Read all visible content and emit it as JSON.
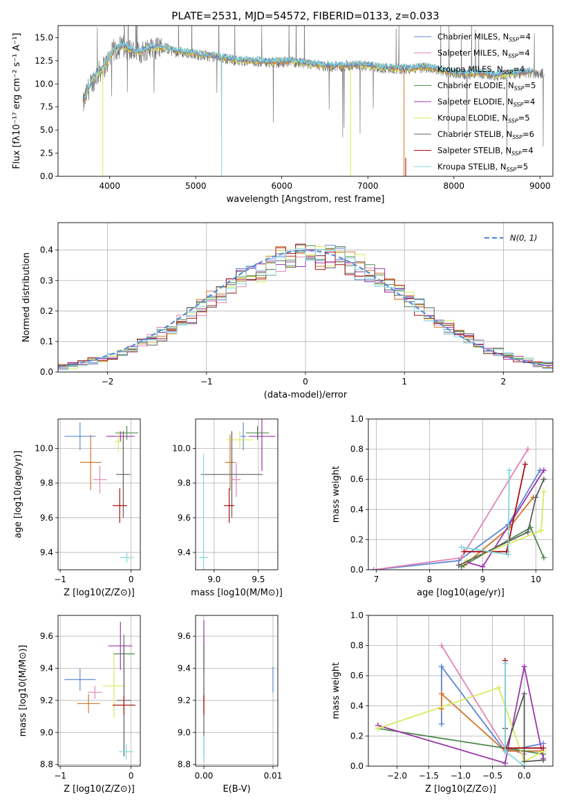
{
  "colors": {
    "chabrier_miles": "#5b87d6",
    "salpeter_miles": "#e183b6",
    "kroupa_miles": "#d2752a",
    "chabrier_elodie": "#4d8a4d",
    "salpeter_elodie": "#9b34a8",
    "kroupa_elodie": "#d8ea5c",
    "chabrier_stelib": "#5b5b5b",
    "salpeter_stelib": "#a80e0e",
    "kroupa_stelib": "#7fd8dd",
    "normal": "#5b8ad6"
  },
  "chart_data": [
    {
      "id": "spectrum",
      "type": "line",
      "title": "PLATE=2531, MJD=54572, FIBERID=0133, z=0.033",
      "xlabel": "wavelength [Angstrom, rest frame]",
      "ylabel": "Flux [fλ10⁻¹⁷ erg cm⁻² s⁻¹ A⁻¹]",
      "xlim": [
        3400,
        9150
      ],
      "ylim": [
        0,
        16.3
      ],
      "xticks": [
        4000,
        5000,
        6000,
        7000,
        8000,
        9000
      ],
      "yticks": [
        0.0,
        2.5,
        5.0,
        7.5,
        10.0,
        12.5,
        15.0
      ],
      "legend_position": "top-right",
      "legend": [
        {
          "label": "Chabrier MILES, N",
          "sub": "SSP",
          "tail": "=4",
          "color_key": "chabrier_miles"
        },
        {
          "label": "Salpeter MILES, N",
          "sub": "SSP",
          "tail": "=4",
          "color_key": "salpeter_miles"
        },
        {
          "label": "Kroupa MILES, N",
          "sub": "SSP",
          "tail": "=4",
          "color_key": "kroupa_miles"
        },
        {
          "label": "Chabrier ELODIE, N",
          "sub": "SSP",
          "tail": "=5",
          "color_key": "chabrier_elodie"
        },
        {
          "label": "Salpeter ELODIE, N",
          "sub": "SSP",
          "tail": "=4",
          "color_key": "salpeter_elodie"
        },
        {
          "label": "Kroupa ELODIE, N",
          "sub": "SSP",
          "tail": "=5",
          "color_key": "kroupa_elodie"
        },
        {
          "label": "Chabrier STELIB, N",
          "sub": "SSP",
          "tail": "=6",
          "color_key": "chabrier_stelib"
        },
        {
          "label": "Salpeter STELIB, N",
          "sub": "SSP",
          "tail": "=4",
          "color_key": "salpeter_stelib"
        },
        {
          "label": "Kroupa STELIB, N",
          "sub": "SSP",
          "tail": "=5",
          "color_key": "kroupa_stelib"
        }
      ],
      "data": {
        "x": [
          3680,
          3750,
          3850,
          3950,
          4050,
          4150,
          4250,
          4350,
          4450,
          4550,
          4650,
          4750,
          4850,
          4950,
          5050,
          5150,
          5300,
          5500,
          5700,
          5900,
          6100,
          6300,
          6500,
          6700,
          6900,
          7100,
          7300,
          7500,
          7700,
          7900,
          8100,
          8300,
          8500,
          8700,
          8900,
          9050
        ],
        "y": [
          7.4,
          9.4,
          11.0,
          12.0,
          13.6,
          14.1,
          13.6,
          13.3,
          13.9,
          13.8,
          13.9,
          13.5,
          13.4,
          13.3,
          13.1,
          13.0,
          12.8,
          12.5,
          12.4,
          12.3,
          12.4,
          12.1,
          11.9,
          11.9,
          12.0,
          11.8,
          11.6,
          11.6,
          11.8,
          11.3,
          11.0,
          11.1,
          10.9,
          11.1,
          11.2,
          11.1
        ]
      }
    },
    {
      "id": "residuals",
      "type": "histogram",
      "xlabel": "(data-model)/error",
      "ylabel": "Normed distribution",
      "xlim": [
        -2.5,
        2.5
      ],
      "ylim": [
        0,
        0.49
      ],
      "xticks": [
        -2,
        -1,
        0,
        1,
        2
      ],
      "yticks": [
        0.0,
        0.1,
        0.2,
        0.3,
        0.4
      ],
      "legend_position": "top-right",
      "legend_label": "N(0, 1)",
      "bins": [
        -2.5,
        2.5,
        50
      ]
    },
    {
      "id": "age_vs_z",
      "type": "errorbar",
      "xlabel": "Z [log10(Z/Z⊙)]",
      "ylabel": "age  [log10(age/yr)]",
      "xlim": [
        -1.03,
        0.13
      ],
      "ylim": [
        9.3,
        10.17
      ],
      "xticks": [
        -1,
        0
      ],
      "yticks": [
        9.4,
        9.6,
        9.8,
        10.0
      ],
      "points": [
        {
          "color_key": "chabrier_miles",
          "x": -0.72,
          "xerr": 0.22,
          "y": 10.07,
          "yerr": 0.08
        },
        {
          "color_key": "salpeter_miles",
          "x": -0.44,
          "xerr": 0.1,
          "y": 9.82,
          "yerr": 0.08
        },
        {
          "color_key": "kroupa_miles",
          "x": -0.57,
          "xerr": 0.15,
          "y": 9.92,
          "yerr": 0.16
        },
        {
          "color_key": "chabrier_elodie",
          "x": -0.06,
          "xerr": 0.16,
          "y": 10.09,
          "yerr": 0.04
        },
        {
          "color_key": "salpeter_elodie",
          "x": -0.15,
          "xerr": 0.2,
          "y": 10.07,
          "yerr": 0.03
        },
        {
          "color_key": "kroupa_elodie",
          "x": -0.18,
          "xerr": 0.05,
          "y": 10.04,
          "yerr": 0.06
        },
        {
          "color_key": "chabrier_stelib",
          "x": -0.11,
          "xerr": 0.1,
          "y": 9.85,
          "yerr": 0.25
        },
        {
          "color_key": "salpeter_stelib",
          "x": -0.16,
          "xerr": 0.1,
          "y": 9.67,
          "yerr": 0.1
        },
        {
          "color_key": "kroupa_stelib",
          "x": -0.06,
          "xerr": 0.1,
          "y": 9.37,
          "yerr": 0.03
        }
      ]
    },
    {
      "id": "age_vs_mass",
      "type": "errorbar",
      "xlabel": "mass [log10(M/M⊙)]",
      "ylabel": "",
      "xlim": [
        8.79,
        9.72
      ],
      "ylim": [
        9.3,
        10.17
      ],
      "xticks": [
        9.0,
        9.5
      ],
      "yticks": [
        9.4,
        9.6,
        9.8,
        10.0
      ],
      "points": [
        {
          "color_key": "chabrier_miles",
          "x": 9.33,
          "xerr": 0.03,
          "y": 10.07,
          "yerr": 0.08
        },
        {
          "color_key": "salpeter_miles",
          "x": 9.25,
          "xerr": 0.05,
          "y": 9.82,
          "yerr": 0.1
        },
        {
          "color_key": "kroupa_miles",
          "x": 9.18,
          "xerr": 0.06,
          "y": 9.92,
          "yerr": 0.16
        },
        {
          "color_key": "chabrier_elodie",
          "x": 9.49,
          "xerr": 0.13,
          "y": 10.09,
          "yerr": 0.04
        },
        {
          "color_key": "salpeter_elodie",
          "x": 9.54,
          "xerr": 0.15,
          "y": 10.07,
          "yerr": 0.2
        },
        {
          "color_key": "kroupa_elodie",
          "x": 9.29,
          "xerr": 0.15,
          "y": 10.05,
          "yerr": 0.05
        },
        {
          "color_key": "chabrier_stelib",
          "x": 9.2,
          "xerr": 0.35,
          "y": 9.85,
          "yerr": 0.25
        },
        {
          "color_key": "salpeter_stelib",
          "x": 9.17,
          "xerr": 0.06,
          "y": 9.67,
          "yerr": 0.1
        },
        {
          "color_key": "kroupa_stelib",
          "x": 8.88,
          "xerr": 0.05,
          "y": 9.37,
          "yerr": 0.6
        }
      ]
    },
    {
      "id": "weight_vs_age",
      "type": "line",
      "xlabel": "age  [log10(age/yr)]",
      "ylabel": "mass weight",
      "xlim": [
        6.85,
        10.32
      ],
      "ylim": [
        0,
        1
      ],
      "xticks": [
        7,
        8,
        9,
        10
      ],
      "yticks": [
        0.0,
        0.2,
        0.4,
        0.6,
        0.8,
        1.0
      ],
      "series": [
        {
          "color_key": "chabrier_miles",
          "x": [
            6.95,
            8.55,
            9.48,
            10.08
          ],
          "y": [
            0.0,
            0.06,
            0.3,
            0.66
          ]
        },
        {
          "color_key": "salpeter_miles",
          "x": [
            6.95,
            8.6,
            9.85
          ],
          "y": [
            0.0,
            0.08,
            0.8
          ]
        },
        {
          "color_key": "kroupa_miles",
          "x": [
            8.65,
            9.5,
            9.95
          ],
          "y": [
            0.03,
            0.28,
            0.48
          ]
        },
        {
          "color_key": "chabrier_elodie",
          "x": [
            8.6,
            9.9,
            10.15
          ],
          "y": [
            0.02,
            0.28,
            0.08
          ]
        },
        {
          "color_key": "salpeter_elodie",
          "x": [
            8.7,
            9.0,
            10.15
          ],
          "y": [
            0.05,
            0.02,
            0.66
          ]
        },
        {
          "color_key": "kroupa_elodie",
          "x": [
            8.7,
            10.1,
            10.15
          ],
          "y": [
            0.06,
            0.26,
            0.52
          ]
        },
        {
          "color_key": "chabrier_stelib",
          "x": [
            8.55,
            9.85,
            10.0,
            10.15
          ],
          "y": [
            0.03,
            0.25,
            0.48,
            0.6
          ]
        },
        {
          "color_key": "salpeter_stelib",
          "x": [
            8.65,
            9.45,
            9.8
          ],
          "y": [
            0.12,
            0.12,
            0.7
          ]
        },
        {
          "color_key": "kroupa_stelib",
          "x": [
            8.6,
            9.48,
            9.5
          ],
          "y": [
            0.15,
            0.1,
            0.66
          ]
        }
      ]
    },
    {
      "id": "mass_vs_z",
      "type": "errorbar",
      "xlabel": "Z [log10(Z/Z⊙)]",
      "ylabel": "mass [log10(M/M⊙)]",
      "xlim": [
        -1.03,
        0.13
      ],
      "ylim": [
        8.79,
        9.73
      ],
      "xticks": [
        -1,
        0
      ],
      "yticks": [
        8.8,
        9.0,
        9.2,
        9.4,
        9.6
      ],
      "points": [
        {
          "color_key": "chabrier_miles",
          "x": -0.72,
          "xerr": 0.22,
          "y": 9.33,
          "yerr": 0.07
        },
        {
          "color_key": "salpeter_miles",
          "x": -0.51,
          "xerr": 0.1,
          "y": 9.25,
          "yerr": 0.04
        },
        {
          "color_key": "kroupa_miles",
          "x": -0.6,
          "xerr": 0.16,
          "y": 9.18,
          "yerr": 0.06
        },
        {
          "color_key": "chabrier_elodie",
          "x": -0.1,
          "xerr": 0.15,
          "y": 9.49,
          "yerr": 0.12
        },
        {
          "color_key": "salpeter_elodie",
          "x": -0.15,
          "xerr": 0.17,
          "y": 9.54,
          "yerr": 0.15
        },
        {
          "color_key": "kroupa_elodie",
          "x": -0.24,
          "xerr": 0.16,
          "y": 9.29,
          "yerr": 0.2
        },
        {
          "color_key": "chabrier_stelib",
          "x": -0.1,
          "xerr": 0.1,
          "y": 9.2,
          "yerr": 0.35
        },
        {
          "color_key": "salpeter_stelib",
          "x": -0.1,
          "xerr": 0.16,
          "y": 9.17,
          "yerr": 0.06
        },
        {
          "color_key": "kroupa_stelib",
          "x": -0.07,
          "xerr": 0.1,
          "y": 8.88,
          "yerr": 0.05
        }
      ]
    },
    {
      "id": "mass_vs_ebv",
      "type": "errorbar",
      "xlabel": "E(B-V)",
      "ylabel": "",
      "xlim": [
        -0.0012,
        0.0107
      ],
      "ylim": [
        8.79,
        9.73
      ],
      "xticks": [
        0.0,
        0.01
      ],
      "yticks": [
        8.8,
        9.0,
        9.2,
        9.4,
        9.6
      ],
      "points": [
        {
          "color_key": "chabrier_miles",
          "x": 0.01,
          "xerr": 0,
          "y": 9.33,
          "yerr": 0.08
        },
        {
          "color_key": "salpeter_miles",
          "x": 0.0,
          "xerr": 0,
          "y": 9.25,
          "yerr": 0.04
        },
        {
          "color_key": "kroupa_miles",
          "x": 0.0,
          "xerr": 0,
          "y": 9.18,
          "yerr": 0.06
        },
        {
          "color_key": "chabrier_elodie",
          "x": 0.0,
          "xerr": 0,
          "y": 9.49,
          "yerr": 0.12
        },
        {
          "color_key": "salpeter_elodie",
          "x": 0.0,
          "xerr": 0,
          "y": 9.62,
          "yerr": 0.08
        },
        {
          "color_key": "kroupa_elodie",
          "x": 0.0,
          "xerr": 0,
          "y": 9.45,
          "yerr": 0.08
        },
        {
          "color_key": "chabrier_stelib",
          "x": 0.0,
          "xerr": 0,
          "y": 9.2,
          "yerr": 0.35
        },
        {
          "color_key": "salpeter_stelib",
          "x": 0.0,
          "xerr": 0,
          "y": 9.17,
          "yerr": 0.06
        },
        {
          "color_key": "kroupa_stelib",
          "x": 0.0,
          "xerr": 0,
          "y": 8.9,
          "yerr": 0.08
        }
      ]
    },
    {
      "id": "weight_vs_z",
      "type": "line",
      "xlabel": "Z [log10(Z/Z⊙)]",
      "ylabel": "mass weight",
      "xlim": [
        -2.45,
        0.45
      ],
      "ylim": [
        0,
        1
      ],
      "xticks": [
        -2.0,
        -1.5,
        -1.0,
        -0.5,
        0.0
      ],
      "yticks": [
        0.0,
        0.2,
        0.4,
        0.6,
        0.8,
        1.0
      ],
      "series": [
        {
          "color_key": "chabrier_miles",
          "x": [
            -1.3,
            -1.3,
            -0.3,
            0.3
          ],
          "y": [
            0.28,
            0.66,
            0.1,
            0.15
          ]
        },
        {
          "color_key": "salpeter_miles",
          "x": [
            -1.3,
            -0.3,
            0.0
          ],
          "y": [
            0.8,
            0.12,
            0.08
          ]
        },
        {
          "color_key": "kroupa_miles",
          "x": [
            -1.3,
            -1.3,
            -0.3,
            0.3
          ],
          "y": [
            0.38,
            0.48,
            0.1,
            0.1
          ]
        },
        {
          "color_key": "chabrier_elodie",
          "x": [
            -2.3,
            0.3
          ],
          "y": [
            0.25,
            0.08
          ]
        },
        {
          "color_key": "salpeter_elodie",
          "x": [
            -2.3,
            -0.3,
            0.0,
            0.3
          ],
          "y": [
            0.27,
            0.02,
            0.66,
            0.05
          ]
        },
        {
          "color_key": "kroupa_elodie",
          "x": [
            -2.3,
            -0.4,
            0.0,
            0.3
          ],
          "y": [
            0.25,
            0.52,
            0.03,
            0.1
          ]
        },
        {
          "color_key": "chabrier_stelib",
          "x": [
            -0.3,
            -0.3,
            0.0,
            0.0,
            0.3
          ],
          "y": [
            0.25,
            0.1,
            0.48,
            0.03,
            0.04
          ]
        },
        {
          "color_key": "salpeter_stelib",
          "x": [
            -0.3,
            -0.3,
            0.3
          ],
          "y": [
            0.7,
            0.12,
            0.12
          ]
        },
        {
          "color_key": "kroupa_stelib",
          "x": [
            -0.3,
            -0.3,
            0.0
          ],
          "y": [
            0.68,
            0.1,
            0.0
          ]
        }
      ]
    }
  ]
}
